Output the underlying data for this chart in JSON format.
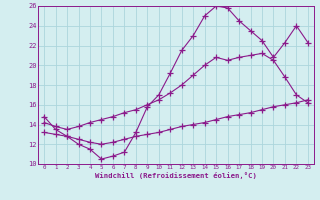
{
  "xlabel": "Windchill (Refroidissement éolien,°C)",
  "bg_color": "#d4eef0",
  "grid_color": "#acd6dc",
  "line_color": "#8b1a8b",
  "xlim": [
    -0.5,
    23.5
  ],
  "ylim": [
    10,
    26
  ],
  "yticks": [
    10,
    12,
    14,
    16,
    18,
    20,
    22,
    24,
    26
  ],
  "xticks": [
    0,
    1,
    2,
    3,
    4,
    5,
    6,
    7,
    8,
    9,
    10,
    11,
    12,
    13,
    14,
    15,
    16,
    17,
    18,
    19,
    20,
    21,
    22,
    23
  ],
  "series": [
    {
      "x": [
        0,
        1,
        2,
        3,
        4,
        5,
        6,
        7,
        8,
        9,
        10,
        11,
        12,
        13,
        14,
        15,
        16,
        17,
        18,
        19,
        20,
        21,
        22,
        23
      ],
      "y": [
        14.8,
        13.5,
        12.8,
        12.0,
        11.5,
        10.5,
        10.8,
        11.2,
        13.2,
        15.8,
        17.0,
        19.2,
        21.5,
        23.0,
        25.0,
        26.0,
        25.8,
        24.5,
        23.5,
        22.5,
        20.8,
        22.3,
        24.0,
        22.3
      ]
    },
    {
      "x": [
        0,
        1,
        2,
        3,
        4,
        5,
        6,
        7,
        8,
        9,
        10,
        11,
        12,
        13,
        14,
        15,
        16,
        17,
        18,
        19,
        20,
        21,
        22,
        23
      ],
      "y": [
        14.2,
        13.8,
        13.5,
        13.8,
        14.2,
        14.5,
        14.8,
        15.2,
        15.5,
        16.0,
        16.5,
        17.2,
        18.0,
        19.0,
        20.0,
        20.8,
        20.5,
        20.8,
        21.0,
        21.2,
        20.5,
        18.8,
        17.0,
        16.2
      ]
    },
    {
      "x": [
        0,
        1,
        2,
        3,
        4,
        5,
        6,
        7,
        8,
        9,
        10,
        11,
        12,
        13,
        14,
        15,
        16,
        17,
        18,
        19,
        20,
        21,
        22,
        23
      ],
      "y": [
        13.2,
        13.0,
        12.8,
        12.5,
        12.2,
        12.0,
        12.2,
        12.5,
        12.8,
        13.0,
        13.2,
        13.5,
        13.8,
        14.0,
        14.2,
        14.5,
        14.8,
        15.0,
        15.2,
        15.5,
        15.8,
        16.0,
        16.2,
        16.5
      ]
    }
  ]
}
